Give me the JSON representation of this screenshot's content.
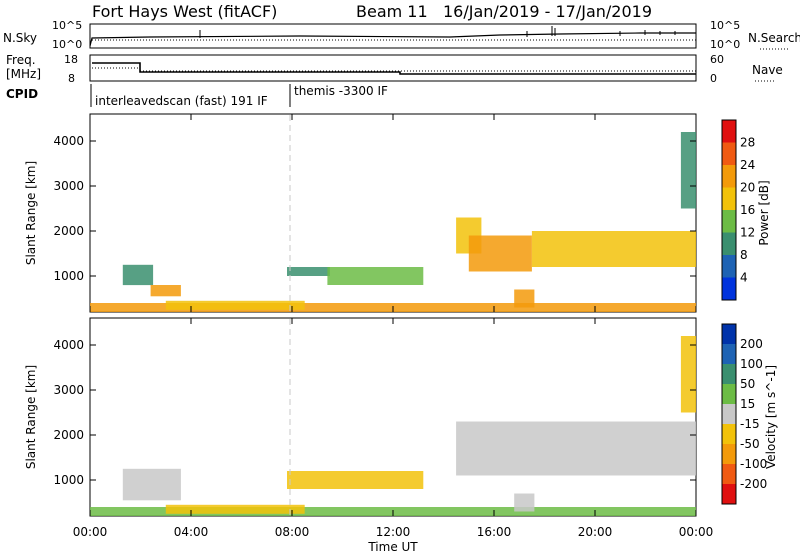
{
  "header": {
    "station": "Fort Hays West (fitACF)",
    "beam": "Beam 11",
    "dates": "16/Jan/2019 - 17/Jan/2019"
  },
  "top_panels": {
    "sky_label": "N.Sky",
    "search_label": "N.Search",
    "freq_label_1": "Freq.",
    "freq_label_2": "[MHz]",
    "nave_label": "Nave",
    "cpid_label": "CPID",
    "left_ticks_1": [
      "10^5",
      "10^0"
    ],
    "right_ticks_1": [
      "10^5",
      "10^0"
    ],
    "left_ticks_2": [
      "18",
      "8"
    ],
    "right_ticks_2": [
      "60",
      "0"
    ],
    "cpid_1": "interleavedscan (fast) 191 IF",
    "cpid_2": "themis -3300 IF"
  },
  "x_axis": {
    "label": "Time UT",
    "ticks": [
      "00:00",
      "04:00",
      "08:00",
      "12:00",
      "16:00",
      "20:00",
      "00:00"
    ]
  },
  "chart_data": [
    {
      "type": "heatmap",
      "panel": "power",
      "ylabel": "Slant Range [km]",
      "yticks": [
        1000,
        2000,
        3000,
        4000
      ],
      "ylim": [
        200,
        4600
      ],
      "xlim_hours": [
        0,
        24
      ],
      "colorbar_label": "Power [dB]",
      "colorbar_ticks": [
        "28",
        "24",
        "20",
        "16",
        "12",
        "8",
        "4"
      ],
      "regions": [
        {
          "t": [
            0.0,
            24.0
          ],
          "r": [
            200,
            400
          ],
          "v": 22
        },
        {
          "t": [
            1.3,
            2.5
          ],
          "r": [
            800,
            1250
          ],
          "v": 10
        },
        {
          "t": [
            2.4,
            3.6
          ],
          "r": [
            550,
            800
          ],
          "v": 20
        },
        {
          "t": [
            3.0,
            8.5
          ],
          "r": [
            250,
            450
          ],
          "v": 18
        },
        {
          "t": [
            7.8,
            9.5
          ],
          "r": [
            1000,
            1200
          ],
          "v": 10
        },
        {
          "t": [
            9.4,
            13.2
          ],
          "r": [
            800,
            1200
          ],
          "v": 14
        },
        {
          "t": [
            14.5,
            15.5
          ],
          "r": [
            1500,
            2300
          ],
          "v": 16
        },
        {
          "t": [
            15.0,
            17.5
          ],
          "r": [
            1100,
            1900
          ],
          "v": 20
        },
        {
          "t": [
            17.5,
            24.0
          ],
          "r": [
            1200,
            2000
          ],
          "v": 18
        },
        {
          "t": [
            16.8,
            17.6
          ],
          "r": [
            300,
            700
          ],
          "v": 22
        },
        {
          "t": [
            23.4,
            24.0
          ],
          "r": [
            2500,
            4200
          ],
          "v": 10
        }
      ]
    },
    {
      "type": "heatmap",
      "panel": "velocity",
      "ylabel": "Slant Range [km]",
      "yticks": [
        1000,
        2000,
        3000,
        4000
      ],
      "ylim": [
        200,
        4600
      ],
      "xlim_hours": [
        0,
        24
      ],
      "colorbar_label": "Velocity [m s^-1]",
      "colorbar_ticks": [
        "200",
        "100",
        "50",
        "15",
        "-15",
        "-50",
        "-100",
        "-200"
      ],
      "regions": [
        {
          "t": [
            0.0,
            24.0
          ],
          "r": [
            200,
            400
          ],
          "v": 40
        },
        {
          "t": [
            1.3,
            3.6
          ],
          "r": [
            550,
            1250
          ],
          "v": 0
        },
        {
          "t": [
            3.0,
            8.5
          ],
          "r": [
            250,
            450
          ],
          "v": -40
        },
        {
          "t": [
            7.8,
            13.2
          ],
          "r": [
            800,
            1200
          ],
          "v": -40
        },
        {
          "t": [
            14.5,
            24.0
          ],
          "r": [
            1100,
            2300
          ],
          "v": 0
        },
        {
          "t": [
            16.8,
            17.6
          ],
          "r": [
            300,
            700
          ],
          "v": 0
        },
        {
          "t": [
            23.4,
            24.0
          ],
          "r": [
            2500,
            4200
          ],
          "v": -80
        }
      ]
    }
  ],
  "colors": {
    "power_scale": [
      "#0033dd",
      "#1e63b4",
      "#3a8f6f",
      "#6cbc45",
      "#f2c20a",
      "#f39a0a",
      "#f05a12",
      "#e01010"
    ],
    "velocity_scale": [
      "#e01010",
      "#f05a12",
      "#f39a0a",
      "#f2c20a",
      "#c8c8c8",
      "#6cbc45",
      "#3a8f6f",
      "#1e63b4",
      "#0033aa"
    ]
  }
}
